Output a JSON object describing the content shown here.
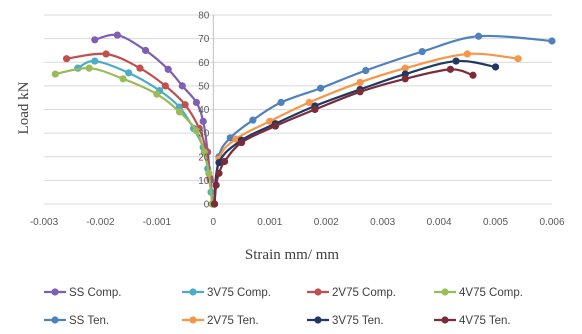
{
  "chart_data": {
    "type": "line",
    "xlabel": "Strain mm/ mm",
    "ylabel": "Load kN",
    "xlim": [
      -0.003,
      0.006
    ],
    "ylim": [
      0,
      80
    ],
    "x_ticks": [
      "-0.003",
      "-0.002",
      "-0.001",
      "0",
      "0.001",
      "0.002",
      "0.003",
      "0.004",
      "0.005",
      "0.006"
    ],
    "x_tick_values": [
      -0.003,
      -0.002,
      -0.001,
      0,
      0.001,
      0.002,
      0.003,
      0.004,
      0.005,
      0.006
    ],
    "y_ticks": [
      "0",
      "10",
      "20",
      "30",
      "40",
      "50",
      "60",
      "70",
      "80"
    ],
    "y_tick_values": [
      0,
      10,
      20,
      30,
      40,
      50,
      60,
      70,
      80
    ],
    "grid": "horizontal",
    "legend_position": "bottom",
    "series": [
      {
        "name": "SS Comp.",
        "color": "#7f5fb3",
        "x": [
          -0.0021,
          -0.0017,
          -0.0012,
          -0.0008,
          -0.00055,
          -0.0003,
          -0.00018,
          -0.0001,
          -5e-05,
          -1e-05
        ],
        "y": [
          69.5,
          71.5,
          65,
          57,
          50,
          43,
          35,
          22,
          10,
          0
        ]
      },
      {
        "name": "3V75 Comp.",
        "color": "#4bacc6",
        "x": [
          -0.0024,
          -0.0021,
          -0.0015,
          -0.00095,
          -0.0006,
          -0.00035,
          -0.00018,
          -0.0001,
          -4e-05,
          -1e-05
        ],
        "y": [
          57.5,
          60.5,
          55.5,
          48,
          41,
          32,
          24,
          15,
          5,
          0
        ]
      },
      {
        "name": "2V75 Comp.",
        "color": "#c0504d",
        "x": [
          -0.0026,
          -0.0019,
          -0.0013,
          -0.00085,
          -0.0005,
          -0.00025,
          -0.00012,
          -6e-05,
          -2e-05
        ],
        "y": [
          61.5,
          63.5,
          57.5,
          50,
          42,
          32,
          22,
          11,
          0
        ]
      },
      {
        "name": "4V75 Comp.",
        "color": "#9bbb59",
        "x": [
          -0.0028,
          -0.0022,
          -0.0016,
          -0.001,
          -0.0006,
          -0.0003,
          -0.00016,
          -8e-05,
          -2e-05
        ],
        "y": [
          55,
          57.5,
          53,
          46.5,
          39,
          31,
          22,
          13,
          0
        ]
      },
      {
        "name": "SS Ten.",
        "color": "#4f81bd",
        "x": [
          2e-05,
          0.0001,
          0.0003,
          0.0007,
          0.0012,
          0.0019,
          0.0027,
          0.0037,
          0.0047,
          0.006
        ],
        "y": [
          0,
          20,
          28,
          35.5,
          43,
          49,
          56.5,
          64.5,
          71,
          69
        ]
      },
      {
        "name": "2V75 Ten.",
        "color": "#f79646",
        "x": [
          2e-05,
          0.0001,
          0.0004,
          0.001,
          0.0017,
          0.0026,
          0.0034,
          0.0045,
          0.0054
        ],
        "y": [
          0,
          19,
          27.5,
          35,
          43,
          51.5,
          57.5,
          63.5,
          61.5
        ]
      },
      {
        "name": "3V75 Ten.",
        "color": "#1f3864",
        "x": [
          2e-05,
          0.0001,
          0.0005,
          0.0011,
          0.0018,
          0.0026,
          0.0034,
          0.0043,
          0.005
        ],
        "y": [
          0,
          17.5,
          27,
          34,
          41.5,
          48.5,
          55,
          60.5,
          58
        ]
      },
      {
        "name": "4V75 Ten.",
        "color": "#7b2c3a",
        "x": [
          2e-05,
          5e-05,
          0.0001,
          0.0002,
          0.0005,
          0.0011,
          0.0018,
          0.0026,
          0.0034,
          0.0042,
          0.0046
        ],
        "y": [
          0,
          8,
          13,
          18,
          26,
          33,
          40,
          47.5,
          53,
          57,
          54.5
        ]
      }
    ]
  }
}
